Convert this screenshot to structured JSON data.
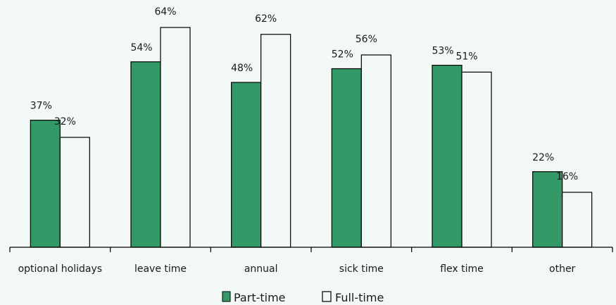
{
  "chart_data": {
    "type": "bar",
    "categories": [
      "optional holidays",
      "leave time",
      "annual",
      "sick time",
      "flex time",
      "other"
    ],
    "series": [
      {
        "name": "Part-time",
        "values": [
          37,
          54,
          48,
          52,
          53,
          22
        ],
        "labels": [
          "37%",
          "54%",
          "48%",
          "52%",
          "53%",
          "22%"
        ],
        "color": "#339966"
      },
      {
        "name": "Full-time",
        "values": [
          32,
          64,
          62,
          56,
          51,
          16
        ],
        "labels": [
          "32%",
          "64%",
          "62%",
          "56%",
          "51%",
          "16%"
        ],
        "color": "#f1f8f5"
      }
    ],
    "ylim": [
      0,
      70
    ],
    "grid": false,
    "legend_position": "bottom-center",
    "title": "",
    "xlabel": "",
    "ylabel": ""
  }
}
